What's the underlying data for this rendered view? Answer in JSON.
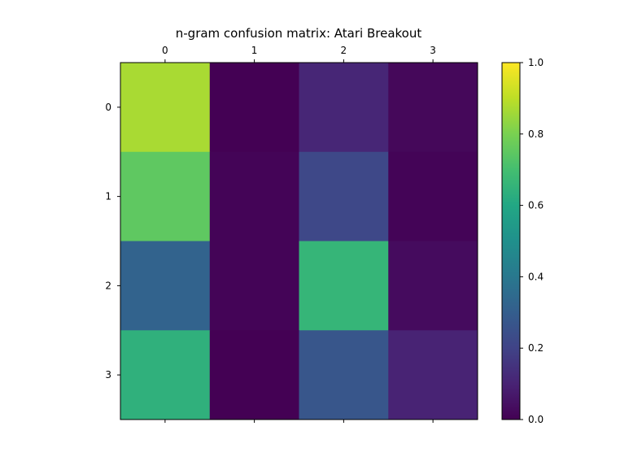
{
  "chart_data": {
    "type": "heatmap",
    "title": "n-gram confusion matrix: Atari Breakout",
    "x_categories": [
      "0",
      "1",
      "2",
      "3"
    ],
    "y_categories": [
      "0",
      "1",
      "2",
      "3"
    ],
    "values": [
      [
        0.87,
        0.0,
        0.11,
        0.02
      ],
      [
        0.75,
        0.01,
        0.22,
        0.01
      ],
      [
        0.32,
        0.01,
        0.66,
        0.03
      ],
      [
        0.64,
        0.0,
        0.27,
        0.1
      ]
    ],
    "colorbar": {
      "ticks": [
        "0.0",
        "0.2",
        "0.4",
        "0.6",
        "0.8",
        "1.0"
      ],
      "range": [
        0,
        1
      ]
    },
    "colormap": "viridis",
    "x_axis_position": "top",
    "grid": false
  }
}
